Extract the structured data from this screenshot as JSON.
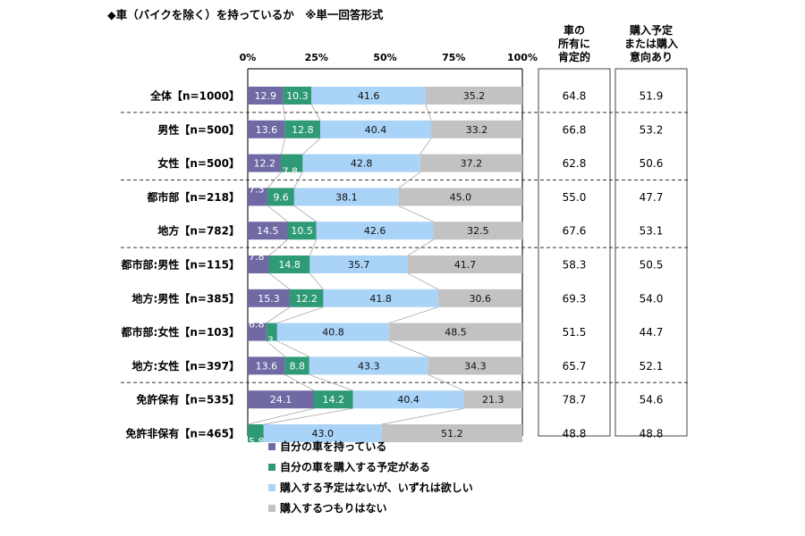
{
  "chart_data": {
    "type": "bar",
    "orientation": "horizontal",
    "stacked": "percent",
    "title": "◆車（バイクを除く）を持っているか　※単一回答形式",
    "xlim": [
      0,
      100
    ],
    "ticks": [
      "0%",
      "25%",
      "50%",
      "75%",
      "100%"
    ],
    "categories": [
      "全体【n=1000】",
      "男性【n=500】",
      "女性【n=500】",
      "都市部【n=218】",
      "地方【n=782】",
      "都市部:男性【n=115】",
      "地方:男性【n=385】",
      "都市部:女性【n=103】",
      "地方:女性【n=397】",
      "免許保有【n=535】",
      "免許非保有【n=465】"
    ],
    "groups_after": [
      0,
      2,
      4,
      8
    ],
    "series": [
      {
        "name": "自分の車を持っている",
        "color": "#6f6aa4",
        "label_color": "#ffffff",
        "values": [
          12.9,
          13.6,
          12.2,
          7.3,
          14.5,
          7.8,
          15.3,
          6.8,
          13.6,
          24.1,
          0
        ]
      },
      {
        "name": "自分の車を購入する予定がある",
        "color": "#2f9a76",
        "label_color": "#ffffff",
        "values": [
          10.3,
          12.8,
          7.8,
          9.6,
          10.5,
          14.8,
          12.2,
          3.9,
          8.8,
          14.2,
          5.8
        ]
      },
      {
        "name": "購入する予定はないが、いずれは欲しい",
        "color": "#a9d3f7",
        "label_color": "#111111",
        "values": [
          41.6,
          40.4,
          42.8,
          38.1,
          42.6,
          35.7,
          41.8,
          40.8,
          43.3,
          40.4,
          43.0
        ]
      },
      {
        "name": "購入するつもりはない",
        "color": "#c2c2c2",
        "label_color": "#111111",
        "values": [
          35.2,
          33.2,
          37.2,
          45.0,
          32.5,
          41.7,
          30.6,
          48.5,
          34.3,
          21.3,
          51.2
        ]
      }
    ],
    "columns": [
      {
        "header": [
          "車の",
          "所有に",
          "肯定的"
        ],
        "values": [
          "64.8",
          "66.8",
          "62.8",
          "55.0",
          "67.6",
          "58.3",
          "69.3",
          "51.5",
          "65.7",
          "78.7",
          "48.8"
        ]
      },
      {
        "header": [
          "購入予定",
          "または購入",
          "意向あり"
        ],
        "values": [
          "51.9",
          "53.2",
          "50.6",
          "47.7",
          "53.1",
          "50.5",
          "54.0",
          "44.7",
          "52.1",
          "54.6",
          "48.8"
        ]
      }
    ],
    "legend_position": "bottom",
    "grid": false
  }
}
